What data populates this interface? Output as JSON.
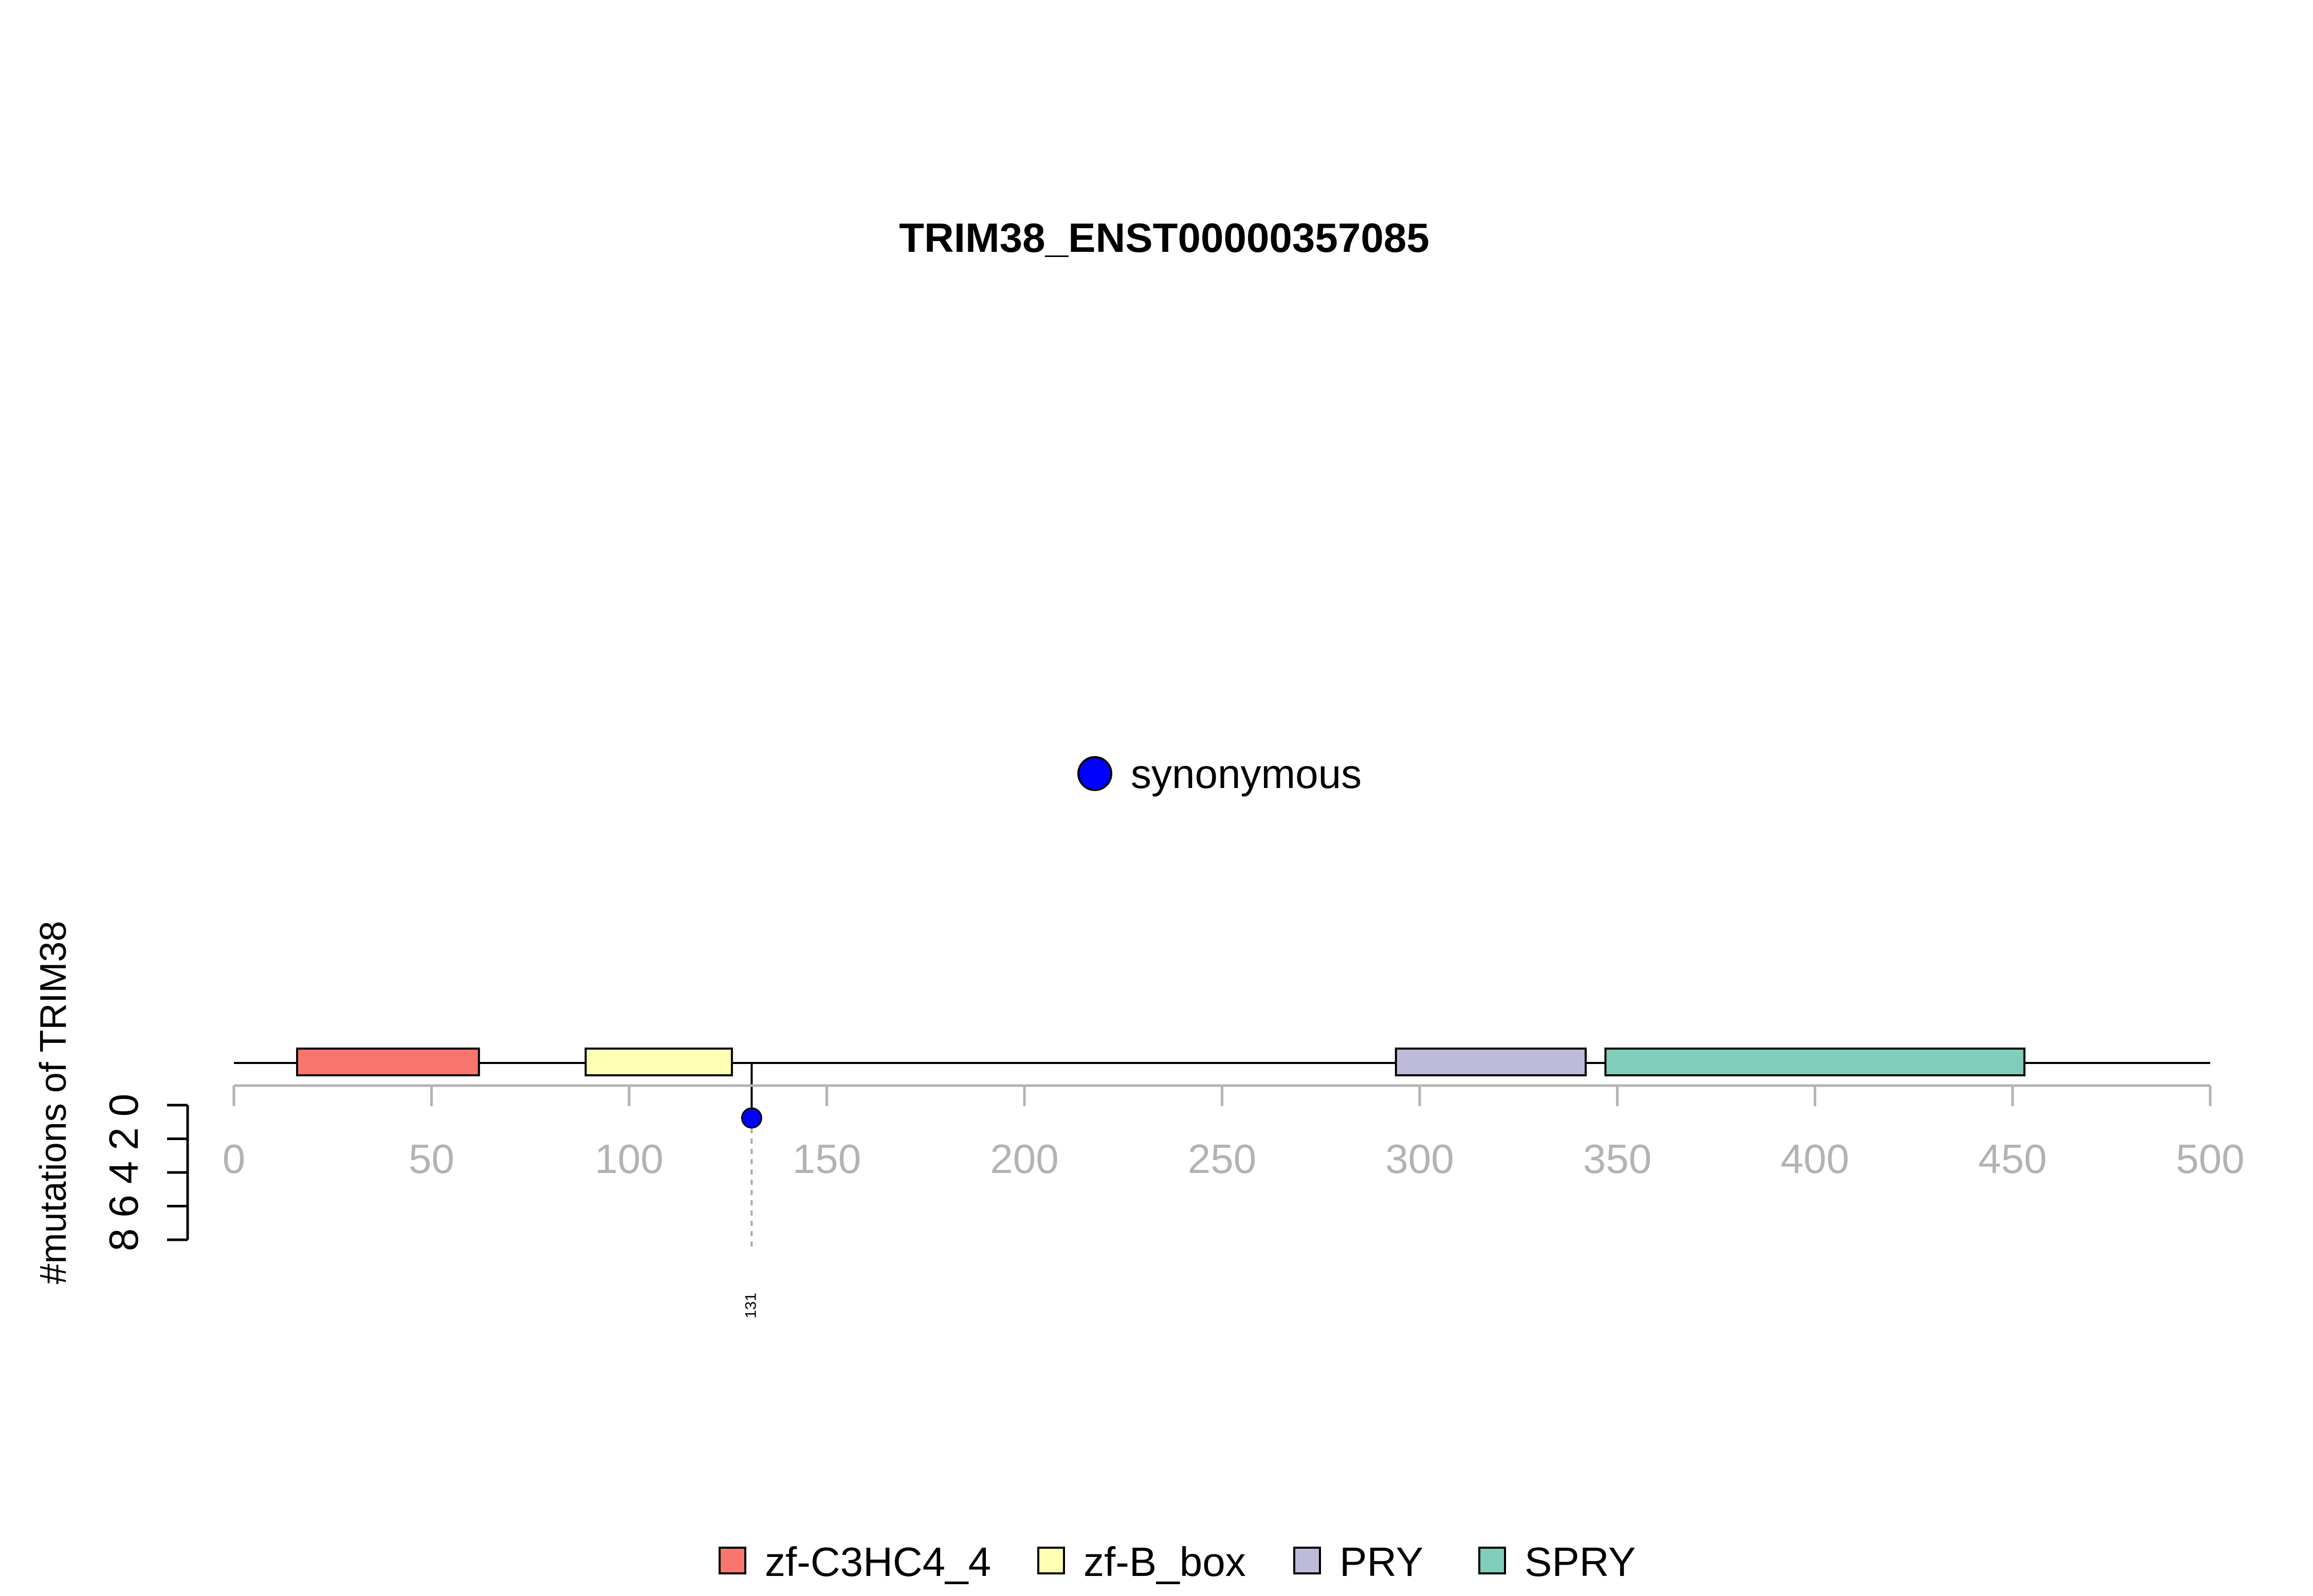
{
  "chart_data": {
    "type": "lollipop",
    "title": "TRIM38_ENST00000357085",
    "ylabel": "#mutations of TRIM38",
    "xlim": [
      0,
      500
    ],
    "x_ticks": [
      0,
      50,
      100,
      150,
      200,
      250,
      300,
      350,
      400,
      450,
      500
    ],
    "ylim": [
      0,
      8
    ],
    "y_ticks": [
      0,
      2,
      4,
      6,
      8
    ],
    "protein_length": 500,
    "domains": [
      {
        "name": "zf-C3HC4_4",
        "start": 16,
        "end": 62,
        "color": "#F8766D"
      },
      {
        "name": "zf-B_box",
        "start": 89,
        "end": 126,
        "color": "#FFFFB3"
      },
      {
        "name": "PRY",
        "start": 294,
        "end": 342,
        "color": "#BEBADA"
      },
      {
        "name": "SPRY",
        "start": 347,
        "end": 453,
        "color": "#80CDB9"
      }
    ],
    "mutations": [
      {
        "position": 131,
        "count": 1,
        "type": "synonymous",
        "label": "131"
      }
    ],
    "mutation_types": [
      {
        "name": "synonymous",
        "color": "#0000FF"
      }
    ],
    "legend": [
      {
        "name": "zf-C3HC4_4",
        "color": "#F8766D"
      },
      {
        "name": "zf-B_box",
        "color": "#FFFFB3"
      },
      {
        "name": "PRY",
        "color": "#BEBADA"
      },
      {
        "name": "SPRY",
        "color": "#80CDB9"
      }
    ],
    "legend_position": "bottom"
  }
}
